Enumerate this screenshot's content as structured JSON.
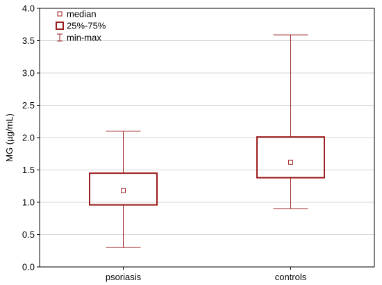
{
  "chart_data": {
    "type": "box",
    "title": "",
    "xlabel": "",
    "ylabel": "MG (µg/mL)",
    "ylim": [
      0.0,
      4.0
    ],
    "yticks": [
      "0.0",
      "0.5",
      "1.0",
      "1.5",
      "2.0",
      "2.5",
      "3.0",
      "3.5",
      "4.0"
    ],
    "categories": [
      "psoriasis",
      "controls"
    ],
    "boxes": [
      {
        "category": "psoriasis",
        "min": 0.3,
        "q1": 0.96,
        "median": 1.18,
        "q3": 1.45,
        "max": 2.1
      },
      {
        "category": "controls",
        "min": 0.9,
        "q1": 1.38,
        "median": 1.62,
        "q3": 2.01,
        "max": 3.59
      }
    ],
    "grid": "horizontal",
    "legend_position": "top-left",
    "legend": [
      {
        "key": "median",
        "label": "median",
        "symbol": "small-square-icon"
      },
      {
        "key": "iqr",
        "label": "25%-75%",
        "symbol": "box-icon"
      },
      {
        "key": "range",
        "label": "min-max",
        "symbol": "whisker-icon"
      }
    ],
    "colors": {
      "series": "#9b1c1c",
      "grid": "#d4d4d4",
      "axis": "#000000"
    }
  }
}
